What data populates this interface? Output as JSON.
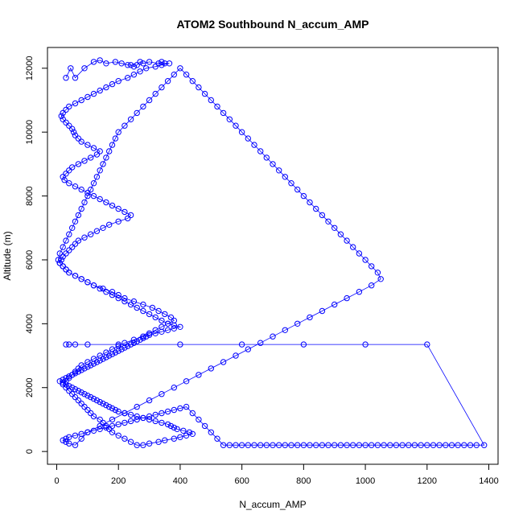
{
  "chart_data": {
    "type": "line",
    "title": "ATOM2 Southbound N_accum_AMP",
    "xlabel": "N_accum_AMP",
    "ylabel": "Altitude (m)",
    "xlim": [
      -30,
      1430
    ],
    "ylim": [
      -400,
      12650
    ],
    "xticks": [
      "0",
      "200",
      "400",
      "600",
      "800",
      "1000",
      "1200",
      "1400"
    ],
    "yticks": [
      "0",
      "2000",
      "4000",
      "6000",
      "8000",
      "10000",
      "12000"
    ],
    "grid": false,
    "legend": "none",
    "series_color": "#0000ff",
    "marker": "open-circle",
    "connected": true,
    "series": [
      {
        "x": [
          30,
          45,
          60,
          90,
          120,
          140,
          160,
          190,
          210,
          230,
          240,
          250,
          260,
          270,
          280,
          300,
          330,
          340,
          350,
          365,
          340,
          320,
          290,
          270,
          250,
          230,
          200,
          180,
          160,
          140,
          120,
          100,
          80,
          60,
          40,
          30,
          20,
          15,
          20,
          30,
          40,
          50,
          55,
          60,
          70,
          80,
          100,
          120,
          140,
          130,
          110,
          90,
          70,
          50,
          40,
          30,
          20,
          25,
          40,
          60,
          80,
          100,
          120,
          140,
          160,
          180,
          200,
          220,
          240,
          230,
          200,
          170,
          150,
          130,
          110,
          90,
          70,
          60,
          50,
          40,
          30,
          20,
          15,
          10,
          20,
          30,
          40,
          60,
          80,
          100,
          120,
          150,
          180,
          200,
          220,
          250,
          280,
          310,
          330,
          350,
          370,
          380,
          360,
          340,
          320,
          300,
          280,
          250,
          220,
          200,
          180,
          160,
          140,
          120,
          100,
          80,
          70,
          60,
          50,
          40,
          30,
          20,
          30,
          40,
          50,
          60,
          70,
          80,
          90,
          100,
          110,
          120,
          140,
          150,
          160,
          170,
          180,
          200,
          220,
          240,
          260,
          280,
          300,
          330,
          350,
          380,
          400,
          420,
          440,
          430,
          410,
          390,
          380,
          370,
          360,
          340,
          320,
          300,
          280,
          260,
          240,
          220,
          200,
          190,
          180,
          170,
          160,
          150,
          140,
          130,
          120,
          110,
          100,
          90,
          80,
          70,
          60,
          50,
          40,
          30,
          20,
          10,
          20,
          30,
          40,
          50,
          60,
          70,
          80,
          90,
          100,
          110,
          120,
          130,
          140,
          150,
          160,
          170,
          180,
          190,
          200,
          210,
          220,
          230,
          240,
          250,
          260,
          270,
          280,
          290,
          300,
          320,
          340,
          360,
          380,
          400,
          380,
          360,
          340,
          320,
          300,
          280,
          260,
          240,
          220,
          200,
          180,
          160,
          140,
          120,
          100,
          80,
          60,
          40,
          30,
          20,
          10,
          5,
          10,
          20,
          30,
          40,
          50,
          60,
          70,
          80,
          90,
          100,
          110,
          120,
          130,
          140,
          150,
          160,
          170,
          180,
          190,
          200,
          220,
          240,
          260,
          280,
          300,
          320,
          340,
          360,
          380,
          400,
          420,
          440,
          460,
          480,
          500,
          520,
          540,
          560,
          580,
          600,
          620,
          640,
          660,
          680,
          700,
          720,
          740,
          760,
          780,
          800,
          820,
          840,
          860,
          880,
          900,
          920,
          940,
          960,
          980,
          1000,
          1020,
          1040,
          1050,
          1020,
          980,
          940,
          900,
          860,
          820,
          780,
          740,
          700,
          660,
          620,
          580,
          540,
          500,
          460,
          420,
          380,
          340,
          300,
          260,
          220,
          180,
          140,
          100,
          80,
          60,
          40,
          30,
          20,
          30,
          40,
          60,
          80,
          100,
          120,
          140,
          160,
          180,
          200,
          220,
          240,
          260,
          280,
          300,
          320,
          340,
          360,
          380,
          400,
          420,
          440,
          460,
          480,
          500,
          520,
          540,
          560,
          580,
          600,
          620,
          640,
          660,
          680,
          700,
          720,
          740,
          760,
          780,
          800,
          820,
          840,
          860,
          880,
          900,
          920,
          940,
          960,
          980,
          1000,
          1020,
          1040,
          1060,
          1080,
          1100,
          1120,
          1140,
          1160,
          1180,
          1200,
          1220,
          1240,
          1260,
          1280,
          1300,
          1320,
          1340,
          1360,
          1385,
          1200,
          1000,
          800,
          600,
          400,
          200,
          100,
          60,
          40,
          30
        ],
        "y": [
          11700,
          12000,
          11700,
          12000,
          12200,
          12250,
          12150,
          12200,
          12150,
          12100,
          12100,
          12050,
          12100,
          12200,
          12150,
          12200,
          12150,
          12200,
          12150,
          12150,
          12100,
          12050,
          12000,
          11900,
          11800,
          11700,
          11600,
          11500,
          11400,
          11300,
          11200,
          11100,
          11000,
          10900,
          10800,
          10700,
          10600,
          10500,
          10400,
          10300,
          10200,
          10100,
          10000,
          9900,
          9800,
          9700,
          9600,
          9500,
          9400,
          9300,
          9200,
          9100,
          9000,
          8900,
          8800,
          8700,
          8600,
          8500,
          8400,
          8300,
          8200,
          8100,
          8000,
          7900,
          7800,
          7700,
          7600,
          7500,
          7400,
          7300,
          7200,
          7100,
          7000,
          6900,
          6800,
          6700,
          6600,
          6500,
          6400,
          6300,
          6200,
          6100,
          6000,
          5900,
          5800,
          5700,
          5600,
          5500,
          5400,
          5300,
          5200,
          5100,
          5000,
          4900,
          4800,
          4700,
          4600,
          4500,
          4400,
          4300,
          4200,
          4100,
          4000,
          3900,
          3800,
          3700,
          3600,
          3500,
          3400,
          3300,
          3200,
          3100,
          3000,
          2900,
          2800,
          2700,
          2600,
          2500,
          2400,
          2300,
          2200,
          2100,
          2000,
          1900,
          1800,
          1700,
          1600,
          1500,
          1400,
          1300,
          1200,
          1100,
          1000,
          900,
          800,
          700,
          600,
          500,
          400,
          300,
          200,
          200,
          250,
          300,
          350,
          400,
          450,
          500,
          550,
          600,
          650,
          700,
          750,
          800,
          850,
          900,
          950,
          1000,
          1050,
          1100,
          1150,
          1200,
          1250,
          1300,
          1350,
          1400,
          1450,
          1500,
          1550,
          1600,
          1650,
          1700,
          1750,
          1800,
          1850,
          1900,
          1950,
          2000,
          2050,
          2100,
          2150,
          2200,
          2250,
          2300,
          2350,
          2400,
          2450,
          2500,
          2550,
          2600,
          2650,
          2700,
          2750,
          2800,
          2850,
          2900,
          2950,
          3000,
          3050,
          3100,
          3150,
          3200,
          3250,
          3300,
          3350,
          3400,
          3450,
          3500,
          3550,
          3600,
          3650,
          3700,
          3750,
          3800,
          3850,
          3900,
          3950,
          4000,
          4100,
          4200,
          4300,
          4400,
          4500,
          4600,
          4700,
          4800,
          4900,
          5000,
          5100,
          5200,
          5300,
          5400,
          5500,
          5600,
          5700,
          5800,
          5900,
          6000,
          6200,
          6400,
          6600,
          6800,
          7000,
          7200,
          7400,
          7600,
          7800,
          8000,
          8200,
          8400,
          8600,
          8800,
          9000,
          9200,
          9400,
          9600,
          9800,
          10000,
          10200,
          10400,
          10600,
          10800,
          11000,
          11200,
          11400,
          11600,
          11800,
          12000,
          11800,
          11600,
          11400,
          11200,
          11000,
          10800,
          10600,
          10400,
          10200,
          10000,
          9800,
          9600,
          9400,
          9200,
          9000,
          8800,
          8600,
          8400,
          8200,
          8000,
          7800,
          7600,
          7400,
          7200,
          7000,
          6800,
          6600,
          6400,
          6200,
          6000,
          5800,
          5600,
          5400,
          5200,
          5000,
          4800,
          4600,
          4400,
          4200,
          4000,
          3800,
          3600,
          3400,
          3200,
          3000,
          2800,
          2600,
          2400,
          2200,
          2000,
          1800,
          1600,
          1400,
          1200,
          1000,
          800,
          600,
          400,
          200,
          250,
          300,
          350,
          400,
          450,
          500,
          550,
          600,
          650,
          700,
          750,
          800,
          850,
          900,
          950,
          1000,
          1050,
          1100,
          1150,
          1200,
          1250,
          1300,
          1350,
          1400,
          1200,
          1000,
          800,
          600,
          400,
          200,
          200,
          200,
          200,
          200,
          200,
          200,
          200,
          200,
          200,
          200,
          200,
          200,
          200,
          200,
          200,
          200,
          200,
          200,
          200,
          200,
          200,
          200,
          200,
          200,
          200,
          200,
          200,
          200,
          200,
          200,
          200,
          200,
          200,
          200,
          200,
          200,
          200,
          200,
          200,
          200,
          200,
          200,
          3350,
          3350,
          3350,
          3350,
          3350,
          3350,
          3350,
          3350,
          3350,
          3350
        ]
      }
    ]
  }
}
